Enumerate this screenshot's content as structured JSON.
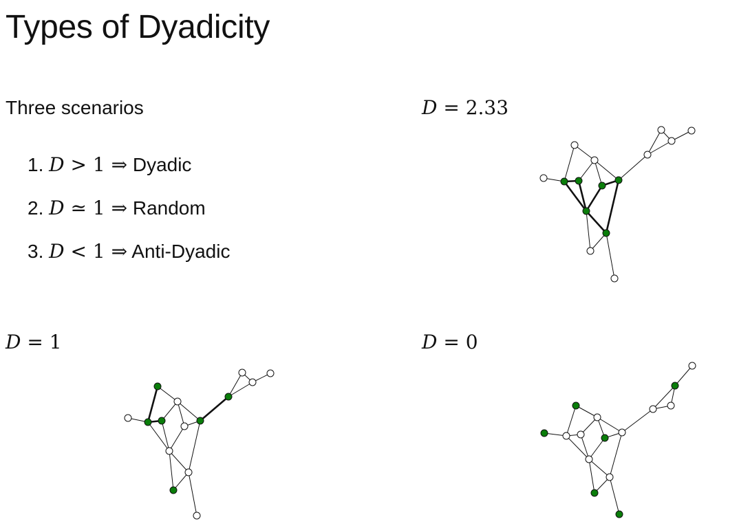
{
  "title": "Types of Dyadicity",
  "subtitle": "Three scenarios",
  "scenarios": [
    {
      "num": "1.",
      "var": "D",
      "rel": "> 1",
      "arrow": "⇒",
      "label": "Dyadic"
    },
    {
      "num": "2.",
      "var": "D",
      "rel": "≃ 1",
      "arrow": "⇒",
      "label": "Random"
    },
    {
      "num": "3.",
      "var": "D",
      "rel": "< 1",
      "arrow": "⇒",
      "label": "Anti-Dyadic"
    }
  ],
  "colors": {
    "green": "#0a7d0a",
    "white": "#ffffff",
    "edge": "#111111"
  },
  "panels": [
    {
      "id": "top-right",
      "var": "D",
      "value": "= 2.33"
    },
    {
      "id": "bottom-left",
      "var": "D",
      "value": "= 1"
    },
    {
      "id": "bottom-right",
      "var": "D",
      "value": "= 0"
    }
  ]
}
